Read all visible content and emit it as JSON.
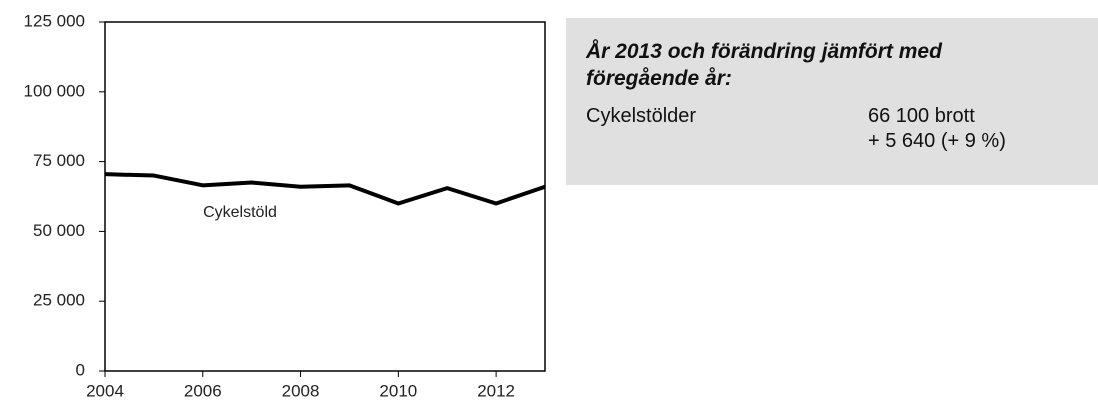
{
  "chart_data": {
    "type": "line",
    "x": [
      2004,
      2005,
      2006,
      2007,
      2008,
      2009,
      2010,
      2011,
      2012,
      2013
    ],
    "series": [
      {
        "name": "Cykelstöld",
        "color": "#000000",
        "values": [
          70500,
          70000,
          66500,
          67500,
          66000,
          66500,
          60000,
          65500,
          60000,
          66000
        ]
      }
    ],
    "xlim": [
      2004,
      2013
    ],
    "xticks": [
      2004,
      2006,
      2008,
      2010,
      2012
    ],
    "ylim": [
      0,
      125000
    ],
    "yticks": [
      0,
      {
        "value": 25000,
        "label": "25 000"
      },
      {
        "value": 50000,
        "label": "50 000"
      },
      {
        "value": 75000,
        "label": "75 000"
      },
      {
        "value": 100000,
        "label": "100 000"
      },
      {
        "value": 125000,
        "label": "125 000"
      }
    ]
  },
  "info_box": {
    "title": "År 2013 och förändring jämfört med föregående år:",
    "label": "Cykelstölder",
    "lines": [
      "66 100 brott",
      "+ 5 640 (+ 9 %)"
    ]
  }
}
